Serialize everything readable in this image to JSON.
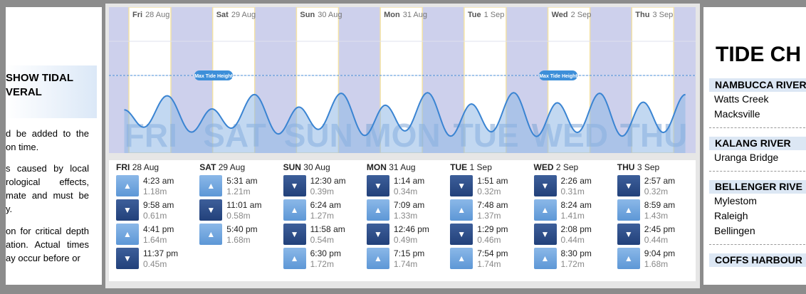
{
  "left_panel": {
    "heading": [
      "SHOW TIDAL",
      "VERAL"
    ],
    "paragraphs": [
      [
        "d be added to the",
        "on time."
      ],
      [
        "s caused by local",
        "rological effects,",
        "mate and must be",
        "y."
      ],
      [
        "on for critical depth",
        "ation. Actual times",
        "ay occur before or"
      ]
    ]
  },
  "chart": {
    "max_tide_label": "Max Tide Height"
  },
  "days": [
    {
      "label": "Fri",
      "upper": "FRI",
      "date": "28 Aug",
      "entries": [
        {
          "direction": "up",
          "time": "4:23 am",
          "height": "1.18m"
        },
        {
          "direction": "down",
          "time": "9:58 am",
          "height": "0.61m"
        },
        {
          "direction": "up",
          "time": "4:41 pm",
          "height": "1.64m"
        },
        {
          "direction": "down",
          "time": "11:37 pm",
          "height": "0.45m"
        }
      ]
    },
    {
      "label": "Sat",
      "upper": "SAT",
      "date": "29 Aug",
      "entries": [
        {
          "direction": "up",
          "time": "5:31 am",
          "height": "1.21m"
        },
        {
          "direction": "down",
          "time": "11:01 am",
          "height": "0.58m"
        },
        {
          "direction": "up",
          "time": "5:40 pm",
          "height": "1.68m"
        }
      ]
    },
    {
      "label": "Sun",
      "upper": "SUN",
      "date": "30 Aug",
      "entries": [
        {
          "direction": "down",
          "time": "12:30 am",
          "height": "0.39m"
        },
        {
          "direction": "up",
          "time": "6:24 am",
          "height": "1.27m"
        },
        {
          "direction": "down",
          "time": "11:58 am",
          "height": "0.54m"
        },
        {
          "direction": "up",
          "time": "6:30 pm",
          "height": "1.72m"
        }
      ]
    },
    {
      "label": "Mon",
      "upper": "MON",
      "date": "31 Aug",
      "entries": [
        {
          "direction": "down",
          "time": "1:14 am",
          "height": "0.34m"
        },
        {
          "direction": "up",
          "time": "7:09 am",
          "height": "1.33m"
        },
        {
          "direction": "down",
          "time": "12:46 pm",
          "height": "0.49m"
        },
        {
          "direction": "up",
          "time": "7:15 pm",
          "height": "1.74m"
        }
      ]
    },
    {
      "label": "Tue",
      "upper": "TUE",
      "date": "1 Sep",
      "entries": [
        {
          "direction": "down",
          "time": "1:51 am",
          "height": "0.32m"
        },
        {
          "direction": "up",
          "time": "7:48 am",
          "height": "1.37m"
        },
        {
          "direction": "down",
          "time": "1:29 pm",
          "height": "0.46m"
        },
        {
          "direction": "up",
          "time": "7:54 pm",
          "height": "1.74m"
        }
      ]
    },
    {
      "label": "Wed",
      "upper": "WED",
      "date": "2 Sep",
      "entries": [
        {
          "direction": "down",
          "time": "2:26 am",
          "height": "0.31m"
        },
        {
          "direction": "up",
          "time": "8:24 am",
          "height": "1.41m"
        },
        {
          "direction": "down",
          "time": "2:08 pm",
          "height": "0.44m"
        },
        {
          "direction": "up",
          "time": "8:30 pm",
          "height": "1.72m"
        }
      ]
    },
    {
      "label": "Thu",
      "upper": "THU",
      "date": "3 Sep",
      "entries": [
        {
          "direction": "down",
          "time": "2:57 am",
          "height": "0.32m"
        },
        {
          "direction": "up",
          "time": "8:59 am",
          "height": "1.43m"
        },
        {
          "direction": "down",
          "time": "2:45 pm",
          "height": "0.44m"
        },
        {
          "direction": "up",
          "time": "9:04 pm",
          "height": "1.68m"
        }
      ]
    }
  ],
  "right_panel": {
    "title": "TIDE CH",
    "sections": [
      {
        "name": "NAMBUCCA RIVER",
        "places": [
          "Watts Creek",
          "Macksville"
        ]
      },
      {
        "name": "KALANG RIVER",
        "places": [
          "Uranga Bridge"
        ]
      },
      {
        "name": "BELLENGER RIVE",
        "places": [
          "Mylestom",
          "Raleigh",
          "Bellingen"
        ]
      },
      {
        "name": "COFFS HARBOUR",
        "places": []
      }
    ]
  }
}
